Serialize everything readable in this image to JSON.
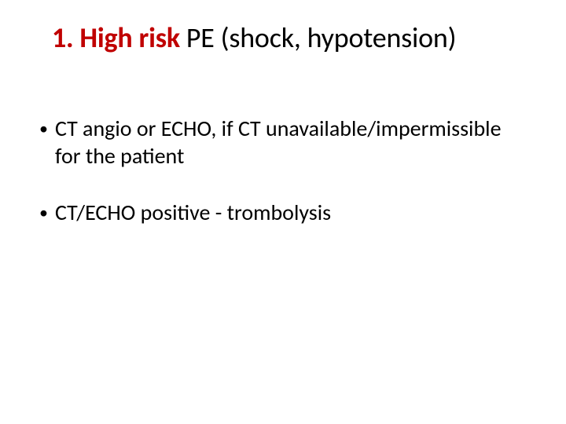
{
  "title": {
    "prefix": "1. High risk",
    "rest": " PE (shock, hypotension)",
    "emph_color": "#c00000",
    "rest_color": "#000000",
    "fontsize": 36
  },
  "bullets": {
    "items": [
      {
        "text": "CT angio or ECHO, if CT unavailable/impermissible for the patient"
      },
      {
        "text": "CT/ECHO positive - trombolysis"
      }
    ],
    "fontsize": 28,
    "bullet_char": "•",
    "text_color": "#000000"
  },
  "background_color": "#ffffff"
}
